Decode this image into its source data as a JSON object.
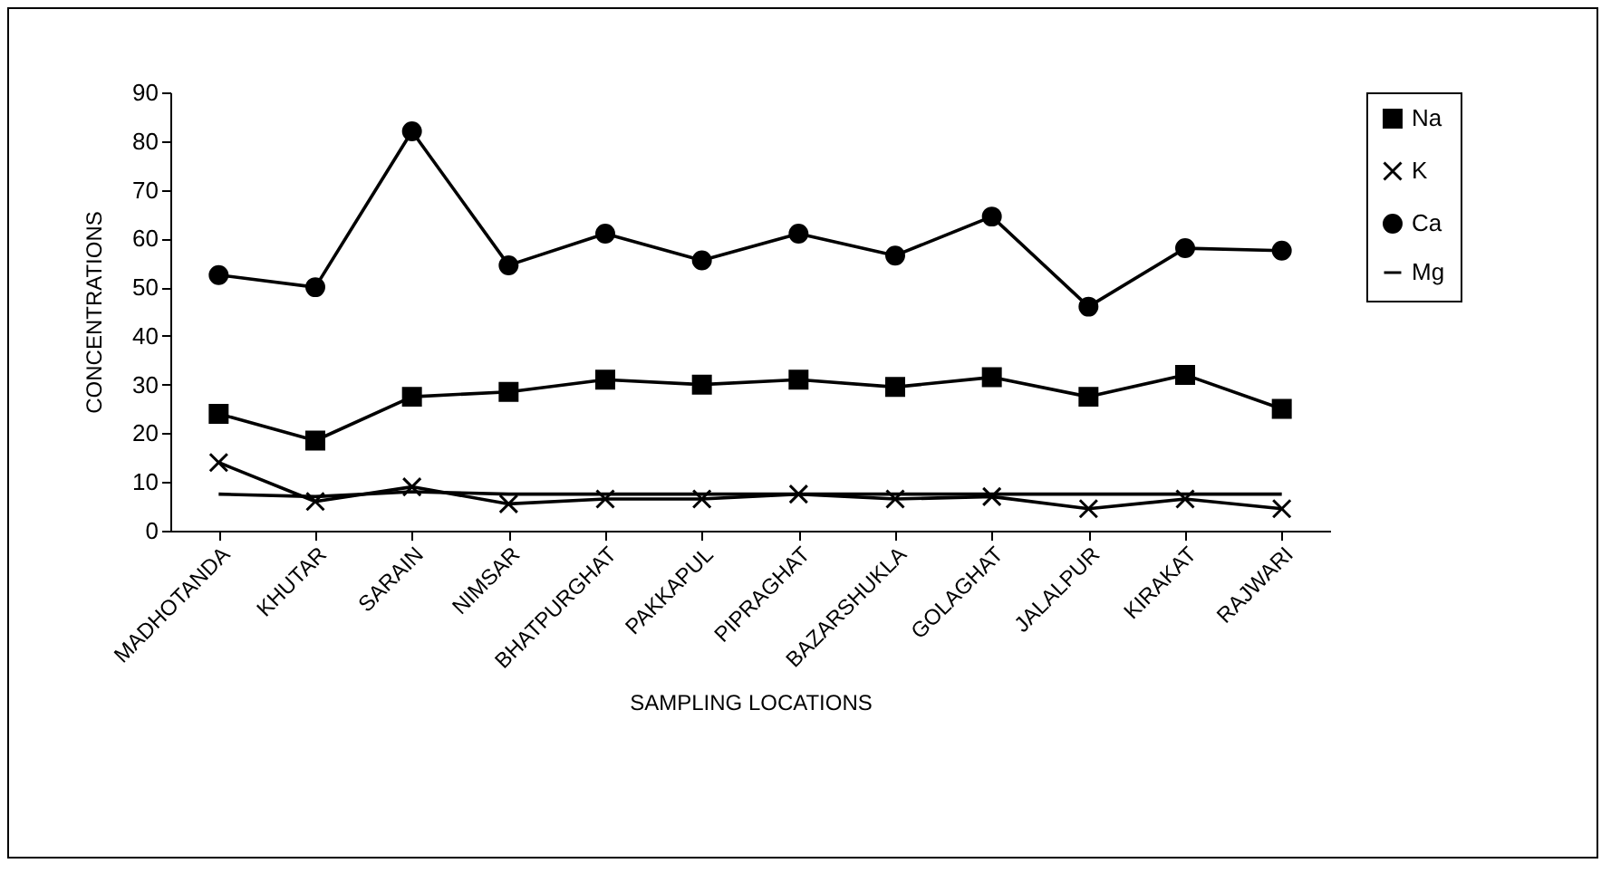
{
  "chart_data": {
    "type": "line",
    "xlabel": "SAMPLING LOCATIONS",
    "ylabel": "CONCENTRATIONS",
    "categories": [
      "MADHOTANDA",
      "KHUTAR",
      "SARAIN",
      "NIMSAR",
      "BHATPURGHAT",
      "PAKKAPUL",
      "PIPRAGHAT",
      "BAZARSHUKLA",
      "GOLAGHAT",
      "JALALPUR",
      "KIRAKAT",
      "RAJWARI"
    ],
    "series": [
      {
        "name": "Na",
        "color": "#000000",
        "marker": "square",
        "values": [
          24,
          18.5,
          27.5,
          28.5,
          31,
          30,
          31,
          29.5,
          31.5,
          27.5,
          32,
          25
        ]
      },
      {
        "name": "K",
        "color": "#000000",
        "marker": "cross",
        "values": [
          14,
          6,
          9,
          5.5,
          6.5,
          6.5,
          7.5,
          6.5,
          7,
          4.5,
          6.5,
          4.5
        ]
      },
      {
        "name": "Ca",
        "color": "#000000",
        "marker": "circle",
        "values": [
          52.5,
          50,
          82,
          54.5,
          61,
          55.5,
          61,
          56.5,
          64.5,
          46,
          58,
          57.5
        ]
      },
      {
        "name": "Mg",
        "color": "#000000",
        "marker": "none",
        "values": [
          7.5,
          7,
          8,
          7.5,
          7.5,
          7.5,
          7.5,
          7.5,
          7.5,
          7.5,
          7.5,
          7.5
        ]
      }
    ],
    "ylim": [
      0,
      90
    ],
    "yticks": [
      0,
      10,
      20,
      30,
      40,
      50,
      60,
      70,
      80,
      90
    ],
    "grid": false,
    "legend": "right"
  }
}
